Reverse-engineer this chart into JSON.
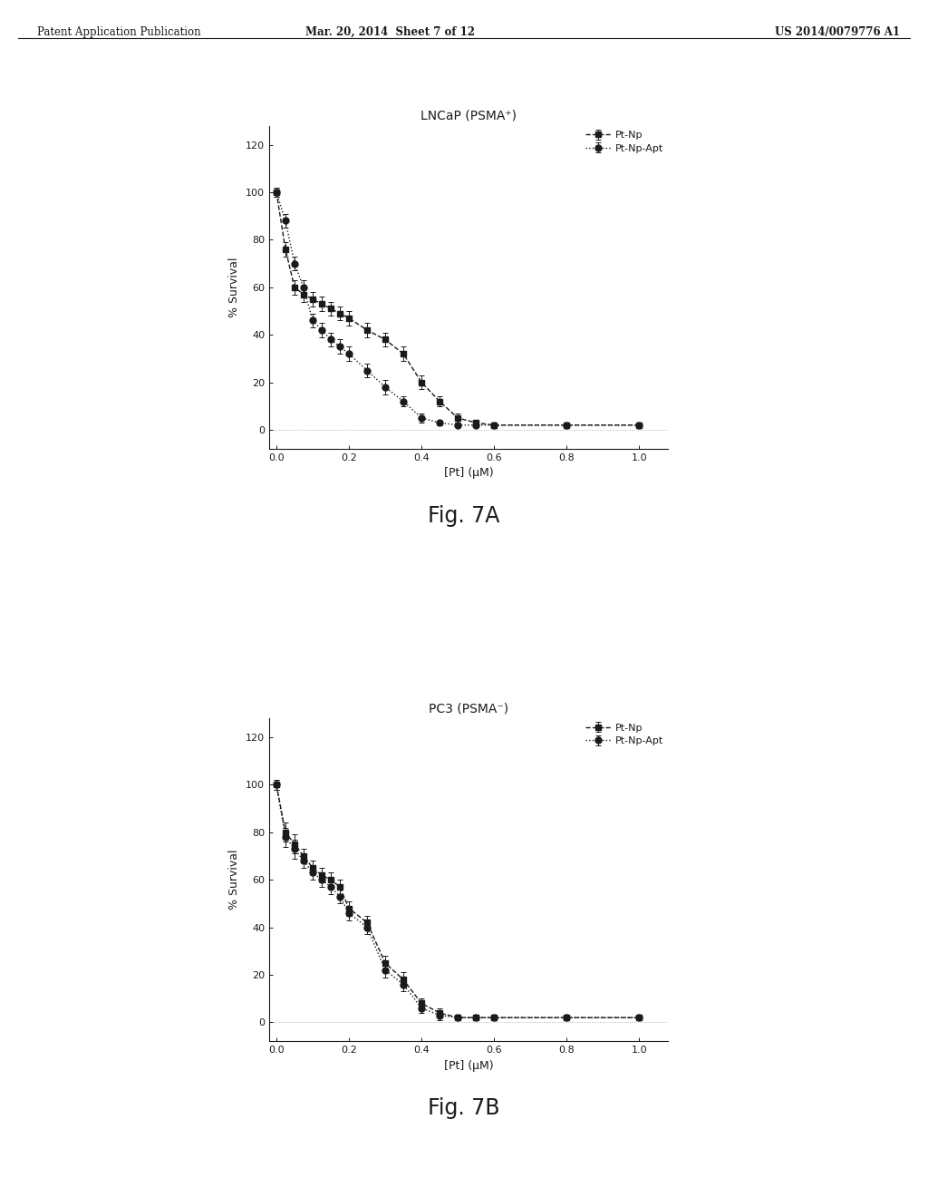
{
  "header_left": "Patent Application Publication",
  "header_mid": "Mar. 20, 2014  Sheet 7 of 12",
  "header_right": "US 2014/0079776 A1",
  "background_color": "#ffffff",
  "plot_background": "#ffffff",
  "fig7A": {
    "title": "LNCaP (PSMA⁺)",
    "xlabel": "[Pt] (μM)",
    "ylabel": "% Survival",
    "figcaption": "Fig. 7A",
    "xlim": [
      -0.02,
      1.08
    ],
    "ylim": [
      -8,
      128
    ],
    "yticks": [
      0,
      20,
      40,
      60,
      80,
      100,
      120
    ],
    "xticks": [
      0.0,
      0.2,
      0.4,
      0.6,
      0.8,
      1.0
    ],
    "series1_label": "Pt-Np",
    "series2_label": "Pt-Np-Apt",
    "series1_x": [
      0.0,
      0.025,
      0.05,
      0.075,
      0.1,
      0.125,
      0.15,
      0.175,
      0.2,
      0.25,
      0.3,
      0.35,
      0.4,
      0.45,
      0.5,
      0.55,
      0.6,
      0.8,
      1.0
    ],
    "series1_y": [
      100,
      76,
      60,
      57,
      55,
      53,
      51,
      49,
      47,
      42,
      38,
      32,
      20,
      12,
      5,
      3,
      2,
      2,
      2
    ],
    "series1_err": [
      2,
      3,
      3,
      3,
      3,
      3,
      3,
      3,
      3,
      3,
      3,
      3,
      3,
      2,
      2,
      1,
      1,
      1,
      1
    ],
    "series2_x": [
      0.0,
      0.025,
      0.05,
      0.075,
      0.1,
      0.125,
      0.15,
      0.175,
      0.2,
      0.25,
      0.3,
      0.35,
      0.4,
      0.45,
      0.5,
      0.55,
      0.6,
      0.8,
      1.0
    ],
    "series2_y": [
      100,
      88,
      70,
      60,
      46,
      42,
      38,
      35,
      32,
      25,
      18,
      12,
      5,
      3,
      2,
      2,
      2,
      2,
      2
    ],
    "series2_err": [
      2,
      3,
      3,
      3,
      3,
      3,
      3,
      3,
      3,
      3,
      3,
      2,
      2,
      1,
      1,
      1,
      1,
      1,
      1
    ]
  },
  "fig7B": {
    "title": "PC3 (PSMA⁻)",
    "xlabel": "[Pt] (μM)",
    "ylabel": "% Survival",
    "figcaption": "Fig. 7B",
    "xlim": [
      -0.02,
      1.08
    ],
    "ylim": [
      -8,
      128
    ],
    "yticks": [
      0,
      20,
      40,
      60,
      80,
      100,
      120
    ],
    "xticks": [
      0.0,
      0.2,
      0.4,
      0.6,
      0.8,
      1.0
    ],
    "series1_label": "Pt-Np",
    "series2_label": "Pt-Np-Apt",
    "series1_x": [
      0.0,
      0.025,
      0.05,
      0.075,
      0.1,
      0.125,
      0.15,
      0.175,
      0.2,
      0.25,
      0.3,
      0.35,
      0.4,
      0.45,
      0.5,
      0.55,
      0.6,
      0.8,
      1.0
    ],
    "series1_y": [
      100,
      80,
      75,
      70,
      65,
      62,
      60,
      57,
      48,
      42,
      25,
      18,
      8,
      4,
      2,
      2,
      2,
      2,
      2
    ],
    "series1_err": [
      2,
      4,
      4,
      3,
      3,
      3,
      3,
      3,
      3,
      3,
      3,
      3,
      2,
      2,
      1,
      1,
      1,
      1,
      1
    ],
    "series2_x": [
      0.0,
      0.025,
      0.05,
      0.075,
      0.1,
      0.125,
      0.15,
      0.175,
      0.2,
      0.25,
      0.3,
      0.35,
      0.4,
      0.45,
      0.5,
      0.55,
      0.6,
      0.8,
      1.0
    ],
    "series2_y": [
      100,
      78,
      73,
      68,
      63,
      60,
      57,
      53,
      46,
      40,
      22,
      16,
      6,
      3,
      2,
      2,
      2,
      2,
      2
    ],
    "series2_err": [
      2,
      4,
      4,
      3,
      3,
      3,
      3,
      3,
      3,
      3,
      3,
      3,
      2,
      2,
      1,
      1,
      1,
      1,
      1
    ]
  },
  "line_color": "#1a1a1a",
  "marker_size": 5,
  "line_width": 1.0,
  "font_color": "#1a1a1a",
  "title_fontsize": 10,
  "label_fontsize": 9,
  "tick_fontsize": 8,
  "legend_fontsize": 8,
  "caption_fontsize": 17
}
